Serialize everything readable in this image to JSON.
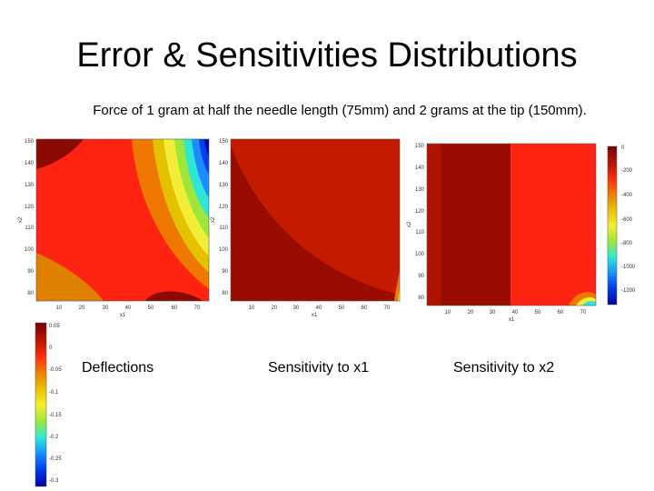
{
  "slide": {
    "title": "Error & Sensitivities Distributions",
    "subtitle": "Force of 1 gram at half the needle length (75mm) and 2 grams at the tip (150mm)."
  },
  "chart_data": [
    {
      "type": "heatmap",
      "caption": "Deflections",
      "xlabel": "x1",
      "ylabel": "x2",
      "xlim": [
        0,
        75
      ],
      "ylim": [
        75,
        150
      ],
      "xticks": [
        "10",
        "20",
        "30",
        "40",
        "50",
        "60",
        "70"
      ],
      "yticks": [
        "80",
        "90",
        "100",
        "110",
        "120",
        "130",
        "140",
        "150"
      ],
      "colorbar": {
        "range": [
          -0.3,
          0.05
        ],
        "ticks": [
          "0.05",
          "0",
          "-0.05",
          "-0.1",
          "-0.15",
          "-0.2",
          "-0.25",
          "-0.3"
        ],
        "colors": [
          "#7a0000",
          "#cc1b00",
          "#ff2a10",
          "#f07a00",
          "#e8c000",
          "#f4ee30",
          "#a0e838",
          "#2fe8d8",
          "#1890ff",
          "#0038e8",
          "#0000a0"
        ]
      }
    },
    {
      "type": "heatmap",
      "caption": "Sensitivity to x1",
      "xlabel": "x1",
      "ylabel": "x2",
      "xlim": [
        0,
        75
      ],
      "ylim": [
        75,
        150
      ],
      "xticks": [
        "10",
        "20",
        "30",
        "40",
        "50",
        "60",
        "70"
      ],
      "yticks": [
        "80",
        "90",
        "100",
        "110",
        "120",
        "130",
        "140",
        "150"
      ]
    },
    {
      "type": "heatmap",
      "caption": "Sensitivity to x2",
      "xlabel": "x1",
      "ylabel": "x2",
      "xlim": [
        0,
        75
      ],
      "ylim": [
        75,
        150
      ],
      "xticks": [
        "10",
        "20",
        "30",
        "40",
        "50",
        "60",
        "70"
      ],
      "yticks": [
        "80",
        "90",
        "100",
        "110",
        "120",
        "130",
        "140",
        "150"
      ],
      "colorbar": {
        "range": [
          -1200,
          0
        ],
        "ticks": [
          "0",
          "-200",
          "-400",
          "-600",
          "-800",
          "-1000",
          "-1200"
        ],
        "colors": [
          "#7a0000",
          "#cc1b00",
          "#ff2a10",
          "#f07a00",
          "#e8c000",
          "#f4ee30",
          "#a0e838",
          "#2fe8d8",
          "#1890ff",
          "#0038e8",
          "#0000a0"
        ]
      }
    }
  ]
}
